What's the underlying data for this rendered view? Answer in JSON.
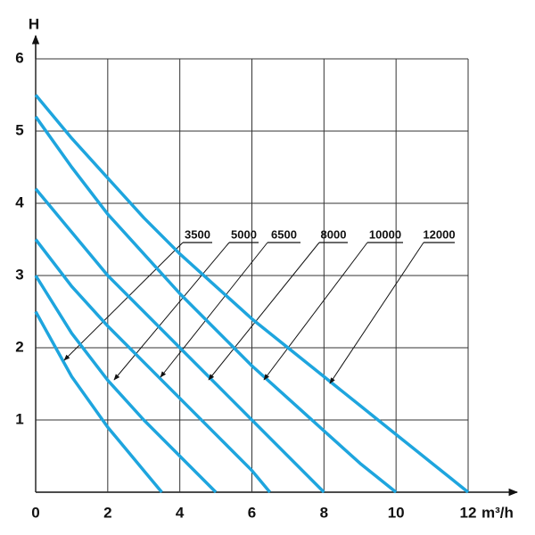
{
  "chart_data": {
    "type": "line",
    "y_label": "H",
    "x_label": "m³/h",
    "xlim": [
      0,
      12
    ],
    "ylim": [
      0,
      6
    ],
    "xticks": [
      0,
      2,
      4,
      6,
      8,
      10,
      12
    ],
    "yticks": [
      1,
      2,
      3,
      4,
      5,
      6
    ],
    "grid": true,
    "series": [
      {
        "name": "3500",
        "color": "#1ea5de",
        "x": [
          0,
          1,
          2,
          3,
          3.5
        ],
        "values": [
          2.5,
          1.6,
          0.9,
          0.3,
          0
        ]
      },
      {
        "name": "5000",
        "color": "#1ea5de",
        "x": [
          0,
          1,
          2,
          3,
          4,
          5
        ],
        "values": [
          3.0,
          2.2,
          1.55,
          1.0,
          0.5,
          0
        ]
      },
      {
        "name": "6500",
        "color": "#1ea5de",
        "x": [
          0,
          1,
          2,
          3,
          4,
          5,
          6,
          6.5
        ],
        "values": [
          3.5,
          2.85,
          2.3,
          1.8,
          1.3,
          0.8,
          0.3,
          0
        ]
      },
      {
        "name": "8000",
        "color": "#1ea5de",
        "x": [
          0,
          1,
          2,
          3,
          4,
          5,
          6,
          7,
          8
        ],
        "values": [
          4.2,
          3.6,
          3.0,
          2.5,
          2.0,
          1.5,
          1.0,
          0.5,
          0
        ]
      },
      {
        "name": "10000",
        "color": "#1ea5de",
        "x": [
          0,
          1,
          2,
          3,
          4,
          5,
          6,
          7,
          8,
          9,
          10
        ],
        "values": [
          5.2,
          4.5,
          3.85,
          3.3,
          2.75,
          2.25,
          1.75,
          1.3,
          0.85,
          0.4,
          0
        ]
      },
      {
        "name": "12000",
        "color": "#1ea5de",
        "x": [
          0,
          1,
          2,
          3,
          4,
          5,
          6,
          7,
          8,
          9,
          10,
          11,
          12
        ],
        "values": [
          5.5,
          4.9,
          4.35,
          3.8,
          3.3,
          2.85,
          2.4,
          2.0,
          1.6,
          1.2,
          0.8,
          0.4,
          0
        ]
      }
    ]
  }
}
